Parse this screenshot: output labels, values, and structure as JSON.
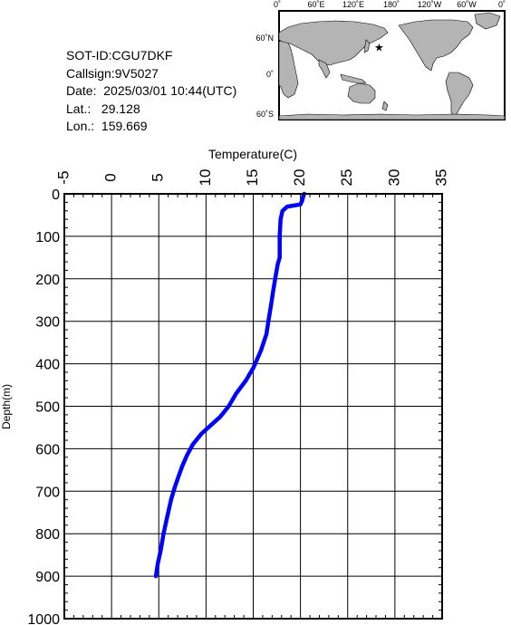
{
  "info": {
    "sot_id": "SOT-ID:CGU7DKF",
    "callsign": "Callsign:9V5027",
    "date": "Date:  2025/03/01 10:44(UTC)",
    "lat": "Lat.:   29.128",
    "lon": "Lon.:  159.669"
  },
  "map": {
    "lon_labels": [
      "0˚",
      "60˚E",
      "120˚E",
      "180˚",
      "120˚W",
      "60˚W",
      "0˚"
    ],
    "lat_labels": [
      "60˚N",
      "0˚",
      "60˚S"
    ],
    "marker": {
      "lat": 29.128,
      "lon": 159.669,
      "symbol": "★"
    },
    "colors": {
      "ocean": "#ffffff",
      "land": "#b4b4b4",
      "marker": "#ff0000"
    }
  },
  "chart_data": {
    "type": "line",
    "xlabel": "Temperature(C)",
    "ylabel": "Depth(m)",
    "xlim": [
      -5,
      35
    ],
    "ylim": [
      0,
      1000
    ],
    "x_ticks": [
      "-5",
      "0",
      "5",
      "10",
      "15",
      "20",
      "25",
      "30",
      "35"
    ],
    "y_ticks": [
      "0",
      "100",
      "200",
      "300",
      "400",
      "500",
      "600",
      "700",
      "800",
      "900",
      "1000"
    ],
    "grid": true,
    "series": [
      {
        "color": "#0000ff",
        "points": [
          [
            20.4,
            0
          ],
          [
            20.3,
            5
          ],
          [
            20.2,
            15
          ],
          [
            20.0,
            25
          ],
          [
            18.6,
            30
          ],
          [
            18.1,
            40
          ],
          [
            17.9,
            60
          ],
          [
            17.8,
            100
          ],
          [
            17.8,
            150
          ],
          [
            17.6,
            165
          ],
          [
            17.4,
            190
          ],
          [
            17.1,
            230
          ],
          [
            16.9,
            260
          ],
          [
            16.6,
            300
          ],
          [
            16.4,
            330
          ],
          [
            15.8,
            370
          ],
          [
            15.0,
            410
          ],
          [
            14.2,
            440
          ],
          [
            13.2,
            470
          ],
          [
            12.4,
            500
          ],
          [
            11.5,
            525
          ],
          [
            10.5,
            545
          ],
          [
            9.5,
            565
          ],
          [
            8.6,
            590
          ],
          [
            8.0,
            615
          ],
          [
            7.5,
            640
          ],
          [
            7.1,
            665
          ],
          [
            6.7,
            690
          ],
          [
            6.3,
            720
          ],
          [
            5.9,
            760
          ],
          [
            5.5,
            800
          ],
          [
            5.2,
            840
          ],
          [
            4.9,
            870
          ],
          [
            4.7,
            900
          ]
        ]
      }
    ]
  }
}
